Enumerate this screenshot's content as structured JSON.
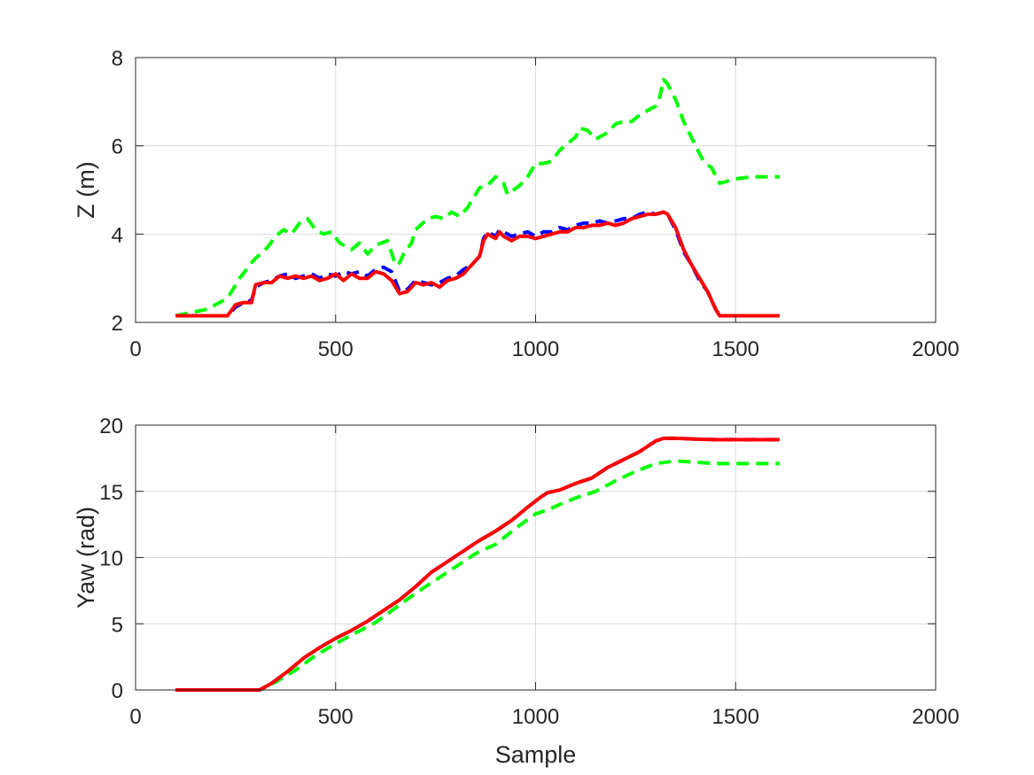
{
  "colors": {
    "background": "#ffffff",
    "axes": "#262626",
    "grid": "#dcdcdc",
    "series_green": "#00ff00",
    "series_blue": "#0000ff",
    "series_red": "#ff0000"
  },
  "chart_data": [
    {
      "type": "line",
      "xlabel": "",
      "ylabel": "Z (m)",
      "xlim": [
        0,
        2000
      ],
      "ylim": [
        2,
        8
      ],
      "xticks": [
        "0",
        "500",
        "1000",
        "1500",
        "2000"
      ],
      "yticks": [
        "2",
        "4",
        "6",
        "8"
      ],
      "grid": true,
      "series": [
        {
          "color": "#00ff00",
          "style": "dashed",
          "x": [
            100,
            180,
            230,
            240,
            260,
            290,
            300,
            330,
            350,
            370,
            390,
            410,
            430,
            450,
            470,
            490,
            510,
            540,
            560,
            580,
            600,
            630,
            650,
            660,
            670,
            690,
            700,
            730,
            750,
            770,
            790,
            810,
            830,
            860,
            880,
            900,
            920,
            930,
            960,
            980,
            1000,
            1020,
            1040,
            1060,
            1080,
            1100,
            1110,
            1130,
            1150,
            1180,
            1200,
            1220,
            1240,
            1260,
            1280,
            1300,
            1310,
            1320,
            1330,
            1350,
            1370,
            1400,
            1420,
            1440,
            1460,
            1480,
            1500,
            1540,
            1580,
            1610
          ],
          "y": [
            2.15,
            2.3,
            2.55,
            2.7,
            3.0,
            3.35,
            3.45,
            3.7,
            3.95,
            4.1,
            4.0,
            4.25,
            4.35,
            4.1,
            4.0,
            4.05,
            3.8,
            3.65,
            3.8,
            3.55,
            3.75,
            3.85,
            3.3,
            3.35,
            3.55,
            3.8,
            4.1,
            4.35,
            4.4,
            4.35,
            4.5,
            4.4,
            4.6,
            5.05,
            5.1,
            5.3,
            5.15,
            4.9,
            5.1,
            5.3,
            5.6,
            5.6,
            5.65,
            5.9,
            6.05,
            6.2,
            6.4,
            6.35,
            6.15,
            6.3,
            6.5,
            6.55,
            6.55,
            6.7,
            6.8,
            6.9,
            7.1,
            7.5,
            7.4,
            7.05,
            6.55,
            6.0,
            5.65,
            5.5,
            5.15,
            5.2,
            5.25,
            5.3,
            5.3,
            5.3
          ]
        },
        {
          "color": "#0000ff",
          "style": "dashed",
          "x": [
            100,
            230,
            250,
            270,
            290,
            300,
            320,
            340,
            360,
            380,
            400,
            420,
            440,
            460,
            480,
            500,
            520,
            540,
            560,
            580,
            600,
            620,
            640,
            660,
            680,
            700,
            720,
            740,
            760,
            780,
            800,
            820,
            840,
            860,
            870,
            880,
            900,
            910,
            920,
            940,
            960,
            980,
            1000,
            1020,
            1040,
            1060,
            1080,
            1100,
            1120,
            1140,
            1160,
            1180,
            1200,
            1220,
            1240,
            1260,
            1280,
            1300,
            1320,
            1330,
            1350,
            1370,
            1390,
            1410,
            1430,
            1450,
            1460,
            1500,
            1560,
            1610
          ],
          "y": [
            2.15,
            2.15,
            2.35,
            2.45,
            2.5,
            2.8,
            2.9,
            2.95,
            3.05,
            3.1,
            3.0,
            3.05,
            3.1,
            3.0,
            3.1,
            3.05,
            3.15,
            3.1,
            3.15,
            3.05,
            3.2,
            3.25,
            3.15,
            2.7,
            2.75,
            2.95,
            2.9,
            2.85,
            2.9,
            3.0,
            3.05,
            3.2,
            3.3,
            3.5,
            3.9,
            4.05,
            3.95,
            4.1,
            4.05,
            3.95,
            4.0,
            4.05,
            3.95,
            4.05,
            4.05,
            4.15,
            4.1,
            4.2,
            4.25,
            4.25,
            4.3,
            4.25,
            4.3,
            4.35,
            4.35,
            4.45,
            4.5,
            4.45,
            4.5,
            4.45,
            4.1,
            3.6,
            3.3,
            2.95,
            2.7,
            2.3,
            2.15,
            2.15,
            2.15,
            2.15
          ]
        },
        {
          "color": "#ff0000",
          "style": "solid",
          "x": [
            100,
            230,
            250,
            270,
            290,
            300,
            320,
            340,
            360,
            380,
            400,
            420,
            440,
            460,
            480,
            500,
            520,
            540,
            560,
            580,
            600,
            620,
            640,
            660,
            680,
            700,
            720,
            740,
            760,
            780,
            800,
            820,
            840,
            860,
            870,
            880,
            900,
            910,
            920,
            940,
            960,
            980,
            1000,
            1020,
            1040,
            1060,
            1080,
            1100,
            1120,
            1140,
            1160,
            1180,
            1200,
            1220,
            1240,
            1260,
            1280,
            1300,
            1320,
            1330,
            1350,
            1370,
            1390,
            1410,
            1430,
            1450,
            1460,
            1500,
            1560,
            1610
          ],
          "y": [
            2.15,
            2.15,
            2.4,
            2.45,
            2.45,
            2.85,
            2.9,
            2.9,
            3.05,
            3.0,
            3.05,
            3.0,
            3.05,
            2.95,
            3.0,
            3.1,
            2.95,
            3.1,
            3.0,
            3.0,
            3.15,
            3.1,
            2.95,
            2.65,
            2.7,
            2.9,
            2.85,
            2.9,
            2.8,
            2.95,
            3.0,
            3.1,
            3.3,
            3.5,
            3.85,
            4.0,
            3.9,
            4.05,
            3.95,
            3.85,
            3.95,
            3.95,
            3.9,
            3.95,
            4.0,
            4.05,
            4.05,
            4.15,
            4.15,
            4.2,
            4.2,
            4.25,
            4.2,
            4.25,
            4.35,
            4.4,
            4.45,
            4.45,
            4.5,
            4.45,
            4.15,
            3.65,
            3.3,
            3.0,
            2.7,
            2.3,
            2.15,
            2.15,
            2.15,
            2.15
          ]
        }
      ]
    },
    {
      "type": "line",
      "xlabel": "Sample",
      "ylabel": "Yaw (rad)",
      "xlim": [
        0,
        2000
      ],
      "ylim": [
        0,
        20
      ],
      "xticks": [
        "0",
        "500",
        "1000",
        "1500",
        "2000"
      ],
      "yticks": [
        "0",
        "5",
        "10",
        "15",
        "20"
      ],
      "grid": true,
      "series": [
        {
          "color": "#00ff00",
          "style": "dashed",
          "x": [
            100,
            310,
            350,
            400,
            450,
            500,
            550,
            600,
            650,
            700,
            750,
            800,
            850,
            900,
            950,
            1000,
            1030,
            1060,
            1100,
            1150,
            1200,
            1250,
            1300,
            1350,
            1400,
            1450,
            1500,
            1610
          ],
          "y": [
            0,
            0,
            0.6,
            1.5,
            2.6,
            3.5,
            4.3,
            5.1,
            6.2,
            7.3,
            8.3,
            9.3,
            10.3,
            11.0,
            12.2,
            13.3,
            13.6,
            14.0,
            14.5,
            15.0,
            15.8,
            16.5,
            17.1,
            17.3,
            17.2,
            17.1,
            17.1,
            17.1
          ]
        },
        {
          "color": "#0000ff",
          "style": "dashed",
          "x": [
            100,
            310,
            340,
            380,
            420,
            460,
            500,
            540,
            580,
            620,
            660,
            700,
            740,
            780,
            820,
            860,
            900,
            940,
            980,
            1010,
            1030,
            1060,
            1100,
            1140,
            1180,
            1220,
            1260,
            1300,
            1320,
            1350,
            1400,
            1450,
            1500,
            1610
          ],
          "y": [
            0,
            0,
            0.5,
            1.4,
            2.4,
            3.2,
            3.9,
            4.5,
            5.2,
            6.0,
            6.8,
            7.8,
            8.9,
            9.7,
            10.5,
            11.3,
            12.0,
            12.8,
            13.8,
            14.5,
            14.9,
            15.1,
            15.6,
            16.0,
            16.8,
            17.4,
            18.0,
            18.8,
            19.0,
            19.0,
            18.95,
            18.9,
            18.9,
            18.9
          ]
        },
        {
          "color": "#ff0000",
          "style": "solid",
          "x": [
            100,
            310,
            340,
            380,
            420,
            460,
            500,
            540,
            580,
            620,
            660,
            700,
            740,
            780,
            820,
            860,
            900,
            940,
            980,
            1010,
            1030,
            1060,
            1100,
            1140,
            1180,
            1220,
            1260,
            1300,
            1320,
            1350,
            1400,
            1450,
            1500,
            1610
          ],
          "y": [
            0,
            0,
            0.5,
            1.4,
            2.4,
            3.2,
            3.9,
            4.5,
            5.2,
            6.0,
            6.8,
            7.8,
            8.9,
            9.7,
            10.5,
            11.3,
            12.0,
            12.8,
            13.8,
            14.5,
            14.9,
            15.1,
            15.6,
            16.0,
            16.8,
            17.4,
            18.0,
            18.8,
            19.0,
            19.0,
            18.95,
            18.9,
            18.9,
            18.9
          ]
        }
      ]
    }
  ]
}
